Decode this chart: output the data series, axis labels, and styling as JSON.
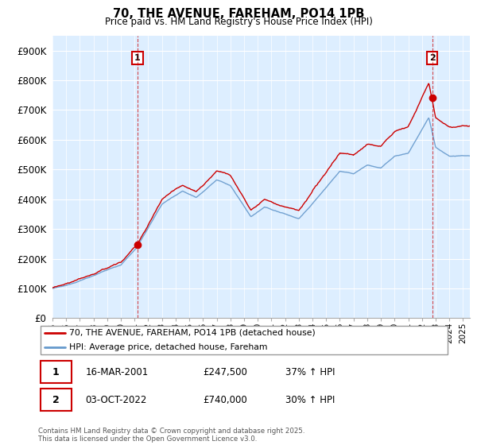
{
  "title": "70, THE AVENUE, FAREHAM, PO14 1PB",
  "subtitle": "Price paid vs. HM Land Registry's House Price Index (HPI)",
  "ylim": [
    0,
    950000
  ],
  "yticks": [
    0,
    100000,
    200000,
    300000,
    400000,
    500000,
    600000,
    700000,
    800000,
    900000
  ],
  "ytick_labels": [
    "£0",
    "£100K",
    "£200K",
    "£300K",
    "£400K",
    "£500K",
    "£600K",
    "£700K",
    "£800K",
    "£900K"
  ],
  "background_color": "#ffffff",
  "plot_bg_color": "#ddeeff",
  "grid_color": "#ffffff",
  "hpi_color": "#6699cc",
  "price_color": "#cc0000",
  "sale1_x": 2001.21,
  "sale1_y": 247500,
  "sale2_x": 2022.75,
  "sale2_y": 740000,
  "legend_entry1": "70, THE AVENUE, FAREHAM, PO14 1PB (detached house)",
  "legend_entry2": "HPI: Average price, detached house, Fareham",
  "annotation1_date": "16-MAR-2001",
  "annotation1_price": "£247,500",
  "annotation1_hpi": "37% ↑ HPI",
  "annotation2_date": "03-OCT-2022",
  "annotation2_price": "£740,000",
  "annotation2_hpi": "30% ↑ HPI",
  "footnote": "Contains HM Land Registry data © Crown copyright and database right 2025.\nThis data is licensed under the Open Government Licence v3.0.",
  "xmin": 1995.0,
  "xmax": 2025.5
}
